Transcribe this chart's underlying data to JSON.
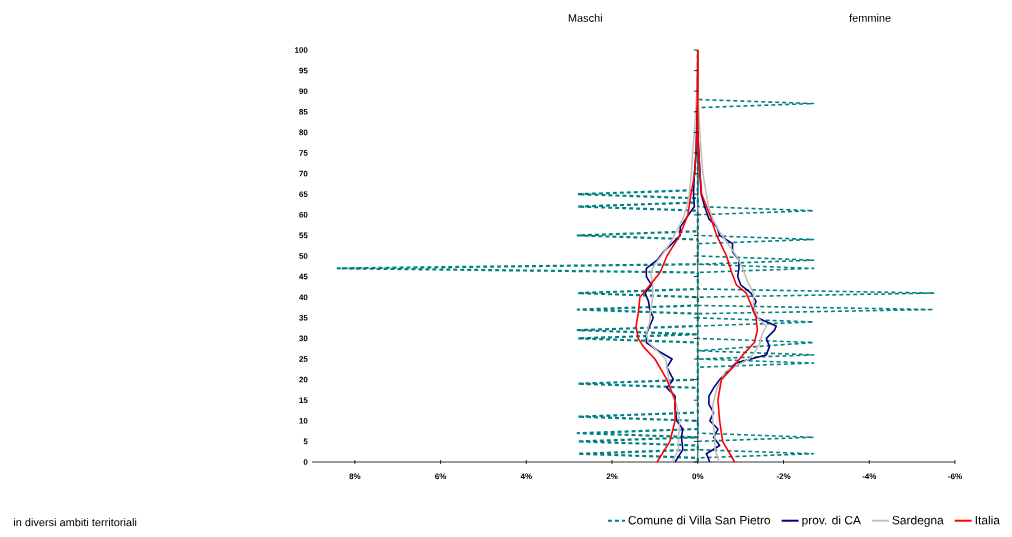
{
  "chart_data": {
    "type": "line",
    "orientation": "horizontal",
    "annotations": [
      "Maschi",
      "femmine",
      "in diversi ambiti territoriali"
    ],
    "xlim": [
      9,
      -6
    ],
    "xticks": [
      {
        "value": 8,
        "label": "8%"
      },
      {
        "value": 6,
        "label": "6%"
      },
      {
        "value": 4,
        "label": "4%"
      },
      {
        "value": 2,
        "label": "2%"
      },
      {
        "value": 0,
        "label": "0%"
      },
      {
        "value": -2,
        "label": "-2%"
      },
      {
        "value": -4,
        "label": "-4%"
      },
      {
        "value": -6,
        "label": "-6%"
      }
    ],
    "ylim": [
      0,
      100
    ],
    "yticks": [
      0,
      5,
      10,
      15,
      20,
      25,
      30,
      35,
      40,
      45,
      50,
      55,
      60,
      65,
      70,
      75,
      80,
      85,
      90,
      95,
      100
    ],
    "legend": "bottom",
    "series": [
      {
        "name": "Comune di Villa San Pietro",
        "color": "#008080",
        "line_style": "dashed",
        "x": [
          0,
          1,
          2,
          3,
          4,
          5,
          6,
          7,
          8,
          10,
          11,
          12,
          18,
          19,
          20,
          29,
          30,
          31,
          32,
          33,
          36,
          37,
          38,
          40,
          41,
          42,
          46,
          47,
          48,
          54,
          55,
          56,
          61,
          62,
          63,
          64,
          65,
          66,
          100
        ],
        "values": [
          0,
          0,
          2.8,
          0,
          0,
          2.8,
          0,
          2.8,
          0,
          0,
          2.8,
          0,
          0,
          2.8,
          0,
          0,
          2.8,
          0,
          2.8,
          0,
          0,
          2.8,
          0,
          0,
          2.8,
          0,
          0,
          8.4,
          0,
          0,
          2.8,
          0,
          0,
          2.8,
          0,
          0,
          2.8,
          0,
          0
        ]
      },
      {
        "color": "#008080",
        "line_style": "dashed",
        "x": [
          0,
          1,
          2,
          3,
          5,
          6,
          7,
          23,
          24,
          25,
          26,
          27,
          29,
          30,
          33,
          34,
          35,
          36,
          37,
          38,
          40,
          41,
          42,
          46,
          47,
          48,
          49,
          50,
          53,
          54,
          55,
          60,
          61,
          62,
          86,
          87,
          88,
          100
        ],
        "values": [
          0,
          0,
          -2.7,
          0,
          0,
          -2.7,
          0,
          0,
          -2.7,
          0,
          -2.7,
          0,
          -2.7,
          0,
          0,
          -2.7,
          0,
          0,
          -5.5,
          0,
          0,
          -5.5,
          0,
          0,
          -2.7,
          0,
          -2.7,
          0,
          0,
          -2.7,
          0,
          0,
          -2.7,
          0,
          0,
          -2.7,
          0,
          0
        ]
      },
      {
        "name": "prov. di CA",
        "color": "#000080",
        "line_style": "solid",
        "x": [
          0,
          3,
          6,
          8,
          10,
          13,
          16,
          18,
          20,
          23,
          25,
          27,
          29,
          31,
          33,
          35,
          37,
          39,
          41,
          43,
          45,
          47,
          49,
          51,
          53,
          55,
          57,
          59,
          62,
          65,
          70,
          75,
          85,
          95
        ],
        "values": [
          0.53,
          0.35,
          0.38,
          0.35,
          0.49,
          0.53,
          0.53,
          0.72,
          0.57,
          0.72,
          0.6,
          0.93,
          1.2,
          1.2,
          1.12,
          1.04,
          1.12,
          1.15,
          1.23,
          1.08,
          1.2,
          1.2,
          0.95,
          0.8,
          0.6,
          0.41,
          0.41,
          0.28,
          0.08,
          0.1,
          0.08,
          0.04,
          0.02,
          0
        ]
      },
      {
        "color": "#000080",
        "line_style": "solid",
        "x": [
          0,
          2,
          4,
          6,
          8,
          10,
          12,
          14,
          16,
          18,
          20,
          22,
          24,
          26,
          28,
          30,
          32,
          33,
          35,
          37,
          39,
          41,
          43,
          45,
          47,
          49,
          51,
          53,
          55,
          57,
          59,
          62,
          65,
          70,
          80
        ],
        "values": [
          -0.28,
          -0.2,
          -0.51,
          -0.37,
          -0.47,
          -0.28,
          -0.37,
          -0.26,
          -0.26,
          -0.37,
          -0.51,
          -0.7,
          -0.89,
          -1.6,
          -1.67,
          -1.6,
          -1.79,
          -1.83,
          -1.39,
          -1.28,
          -1.36,
          -1.24,
          -1.0,
          -0.93,
          -0.96,
          -0.96,
          -0.81,
          -0.81,
          -0.51,
          -0.45,
          -0.26,
          -0.16,
          -0.08,
          -0.05,
          0
        ]
      },
      {
        "name": "Sardegna",
        "color": "#c0c0c0",
        "line_style": "solid",
        "x": [
          0,
          3,
          6,
          10,
          14,
          18,
          22,
          25,
          27,
          29,
          31,
          34,
          37,
          40,
          43,
          46,
          48,
          50,
          53,
          56,
          59,
          62,
          65,
          70,
          75,
          80,
          90,
          100
        ],
        "values": [
          0.6,
          0.45,
          0.45,
          0.42,
          0.5,
          0.65,
          0.7,
          0.75,
          0.95,
          1.15,
          1.2,
          1.12,
          1.1,
          1.05,
          1.05,
          1.1,
          1.0,
          0.85,
          0.65,
          0.5,
          0.35,
          0.25,
          0.2,
          0.15,
          0.12,
          0.08,
          0.02,
          0
        ]
      },
      {
        "color": "#c0c0c0",
        "line_style": "solid",
        "x": [
          0,
          3,
          6,
          10,
          14,
          18,
          22,
          25,
          27,
          29,
          31,
          33,
          35,
          38,
          41,
          44,
          47,
          50,
          53,
          56,
          59,
          62,
          65,
          70,
          75,
          80,
          90,
          100
        ],
        "values": [
          -0.5,
          -0.4,
          -0.4,
          -0.35,
          -0.35,
          -0.45,
          -0.65,
          -1.2,
          -1.35,
          -1.45,
          -1.5,
          -1.6,
          -1.4,
          -1.3,
          -1.3,
          -1.15,
          -1.05,
          -0.9,
          -0.7,
          -0.5,
          -0.35,
          -0.25,
          -0.2,
          -0.12,
          -0.08,
          -0.05,
          0,
          0
        ]
      },
      {
        "name": "Italia",
        "color": "#ff0000",
        "line_style": "solid",
        "x": [
          0,
          5,
          10,
          15,
          20,
          25,
          28,
          30,
          33,
          36,
          40,
          43,
          46,
          50,
          55,
          60,
          65,
          70,
          80,
          100
        ],
        "values": [
          0.95,
          0.65,
          0.53,
          0.53,
          0.72,
          1.0,
          1.27,
          1.39,
          1.44,
          1.39,
          1.35,
          1.11,
          0.88,
          0.72,
          0.42,
          0.23,
          0.16,
          0.07,
          0.02,
          0
        ]
      },
      {
        "color": "#ff0000",
        "line_style": "solid",
        "x": [
          0,
          5,
          10,
          15,
          20,
          23,
          26,
          29,
          32,
          35,
          38,
          41,
          43,
          46,
          50,
          55,
          60,
          65,
          70,
          80,
          100
        ],
        "values": [
          -0.86,
          -0.58,
          -0.51,
          -0.47,
          -0.55,
          -0.82,
          -1.05,
          -1.32,
          -1.39,
          -1.36,
          -1.25,
          -1.13,
          -0.9,
          -0.79,
          -0.67,
          -0.44,
          -0.28,
          -0.09,
          -0.05,
          0,
          0
        ]
      }
    ]
  }
}
